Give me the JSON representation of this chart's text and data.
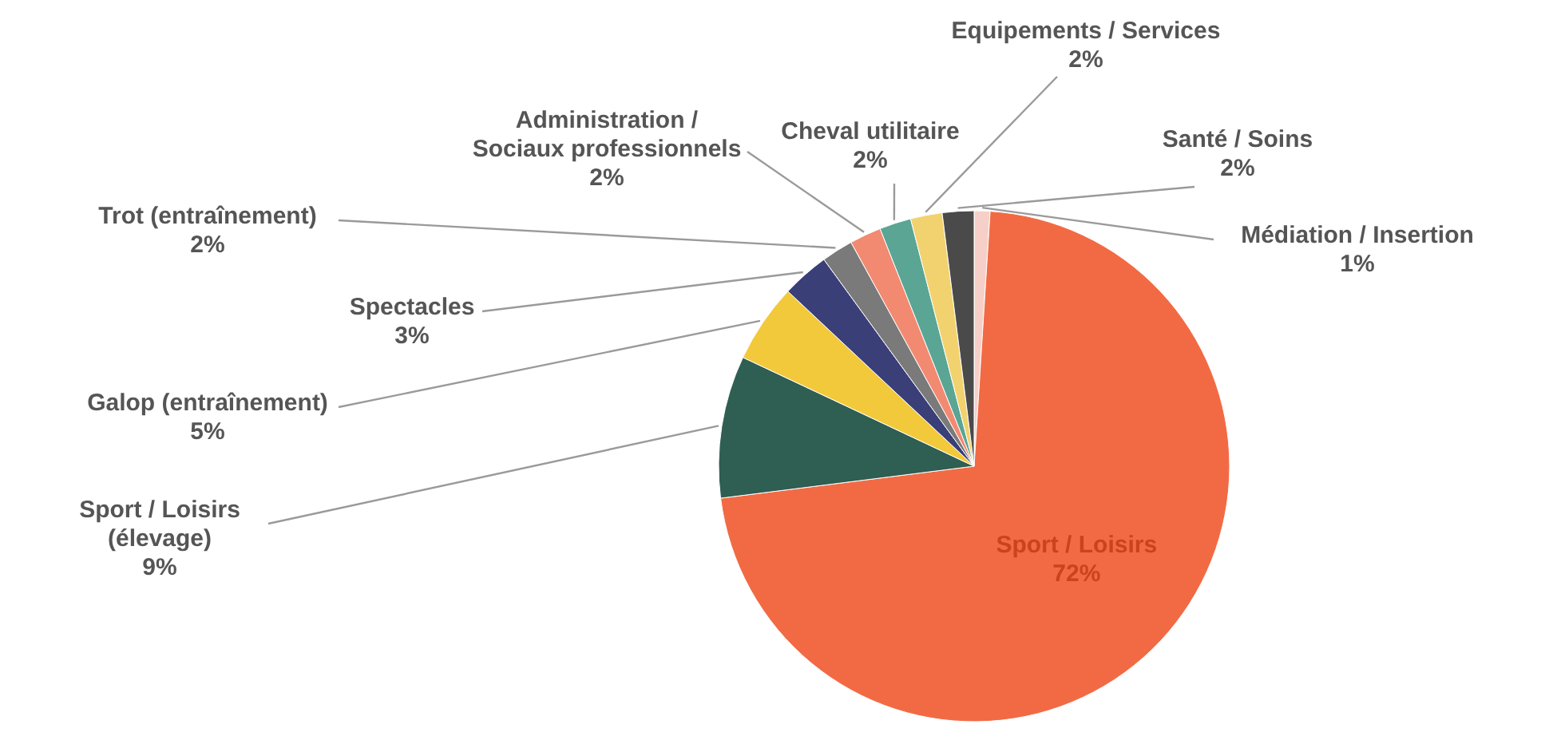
{
  "chart_data": {
    "type": "pie",
    "categories": [
      "Médiation / Insertion",
      "Sport / Loisirs",
      "Sport / Loisirs\n(élevage)",
      "Galop (entraînement)",
      "Spectacles",
      "Trot (entraînement)",
      "Administration /\nSociaux professionnels",
      "Cheval utilitaire",
      "Equipements / Services",
      "Santé / Soins"
    ],
    "values": [
      1,
      72,
      9,
      5,
      3,
      2,
      2,
      2,
      2,
      2
    ],
    "colors": [
      "#f6d0c8",
      "#f26a44",
      "#2f5e52",
      "#f2c93a",
      "#3a3f78",
      "#7a7a7a",
      "#f28a72",
      "#5aa594",
      "#f2d26e",
      "#4a4a4a"
    ],
    "value_labels": [
      "1%",
      "72%",
      "9%",
      "5%",
      "3%",
      "2%",
      "2%",
      "2%",
      "2%",
      "2%"
    ]
  }
}
